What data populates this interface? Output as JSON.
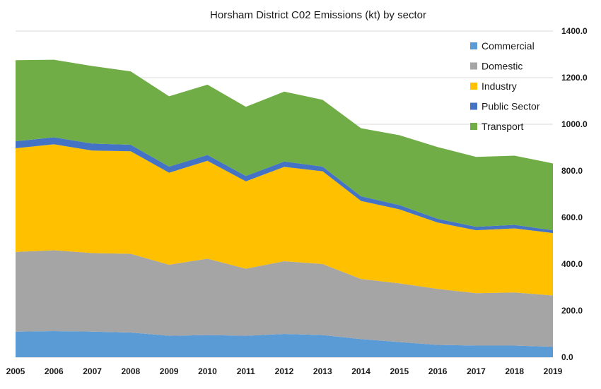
{
  "chart_data": {
    "type": "area",
    "stacked": true,
    "title": "Horsham District C02 Emissions (kt) by sector",
    "xlabel": "",
    "ylabel": "",
    "x": [
      "2005",
      "2006",
      "2007",
      "2008",
      "2009",
      "2010",
      "2011",
      "2012",
      "2013",
      "2014",
      "2015",
      "2016",
      "2017",
      "2018",
      "2019"
    ],
    "ylim": [
      0,
      1400
    ],
    "yticks": [
      "0.0",
      "200.0",
      "400.0",
      "600.0",
      "800.0",
      "1000.0",
      "1200.0",
      "1400.0"
    ],
    "y_axis_side": "right",
    "grid": true,
    "legend_position": "top-right",
    "series": [
      {
        "name": "Commercial",
        "color": "#5b9bd5",
        "values": [
          110,
          112,
          110,
          106,
          92,
          95,
          92,
          100,
          95,
          78,
          65,
          53,
          50,
          50,
          45
        ]
      },
      {
        "name": "Domestic",
        "color": "#a5a5a5",
        "values": [
          342,
          347,
          337,
          338,
          305,
          328,
          288,
          312,
          305,
          258,
          252,
          240,
          225,
          228,
          220
        ]
      },
      {
        "name": "Industry",
        "color": "#ffc000",
        "values": [
          445,
          455,
          440,
          440,
          395,
          420,
          375,
          405,
          398,
          335,
          318,
          285,
          270,
          275,
          268
        ]
      },
      {
        "name": "Public Sector",
        "color": "#4472c4",
        "values": [
          30,
          30,
          30,
          28,
          26,
          25,
          23,
          23,
          20,
          20,
          18,
          16,
          15,
          15,
          12
        ]
      },
      {
        "name": "Transport",
        "color": "#70ad47",
        "values": [
          348,
          333,
          333,
          315,
          302,
          302,
          297,
          300,
          287,
          292,
          300,
          308,
          300,
          297,
          287
        ]
      }
    ]
  }
}
